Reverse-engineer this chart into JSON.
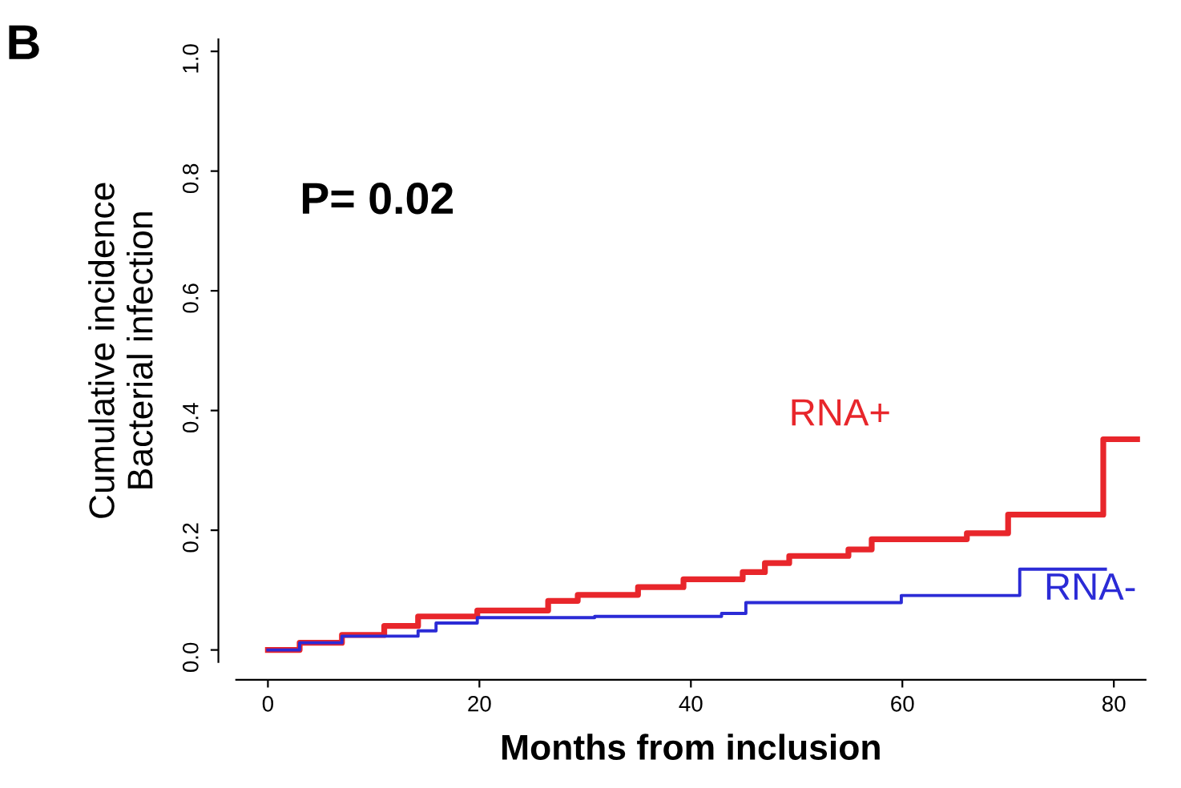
{
  "chart_data": {
    "type": "step",
    "xlabel": "Months from inclusion",
    "ylabel": "Cumulative incidence\nBacterial infection",
    "annotations": [
      "B",
      "P= 0.02"
    ],
    "xlim": [
      -3,
      83
    ],
    "ylim": [
      -0.02,
      1.02
    ],
    "xticks": [
      0,
      20,
      40,
      60,
      80
    ],
    "yticks": [
      {
        "value": 0,
        "label": "0.0"
      },
      0.2,
      0.4,
      0.6,
      0.8,
      {
        "value": 1,
        "label": "1.0"
      }
    ],
    "grid": false,
    "legend": false,
    "series": [
      {
        "name": "RNA+",
        "color": "#e8262b",
        "x": [
          0,
          3,
          7,
          11,
          14.2,
          19.8,
          26.5,
          29.3,
          35,
          39.3,
          44.9,
          47,
          49.3,
          54.9,
          57.1,
          66.1,
          70.0,
          79.0,
          82.2
        ],
        "values": [
          0.0,
          0.012,
          0.025,
          0.04,
          0.056,
          0.066,
          0.082,
          0.092,
          0.105,
          0.118,
          0.13,
          0.145,
          0.157,
          0.168,
          0.185,
          0.195,
          0.226,
          0.352,
          0.352
        ]
      },
      {
        "name": "RNA-",
        "color": "#2b2bd6",
        "x": [
          0,
          3,
          7,
          14.2,
          15.9,
          19.8,
          30.9,
          42.9,
          45.2,
          59.9,
          71.1,
          79.2
        ],
        "values": [
          0.0,
          0.012,
          0.023,
          0.032,
          0.045,
          0.054,
          0.056,
          0.061,
          0.079,
          0.091,
          0.135,
          0.135
        ]
      }
    ]
  }
}
